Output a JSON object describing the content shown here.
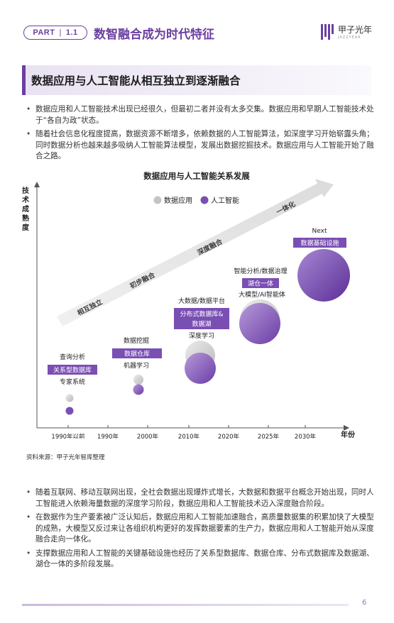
{
  "header": {
    "part_label": "PART",
    "part_number": "1.1",
    "title": "数智融合成为时代特征",
    "logo_text": "甲子光年",
    "logo_sub": "JAZZYEAR"
  },
  "section": {
    "title": "数据应用与人工智能从相互独立到逐渐融合"
  },
  "bullets_top": [
    "数据应用和人工智能技术出现已经很久，但最初二者并没有太多交集。数据应用和早期人工智能技术处于“各自为政”状态。",
    "随着社会信息化程度提高，数据资源不断增多，依赖数据的人工智能算法，如深度学习开始崭露头角；同时数据分析也越来越多吸纳人工智能算法模型，发展出数据挖掘技术。数据应用与人工智能开始了融合之路。"
  ],
  "chart": {
    "title": "数据应用与人工智能关系发展",
    "y_axis_label": "技术成熟度",
    "x_axis_label": "年份",
    "legend": [
      {
        "label": "数据应用",
        "color": "#c4c4c4"
      },
      {
        "label": "人工智能",
        "color": "#7a4fb3"
      }
    ],
    "stages": [
      "相互独立",
      "初步融合",
      "深度融合",
      "一体化"
    ],
    "x_ticks": [
      "1990年以前",
      "1990年",
      "2000年",
      "2010年",
      "2020年",
      "2025年",
      "2030年"
    ],
    "groups": [
      {
        "top": "查询分析",
        "tag": "关系型数据库",
        "bottom": "专家系统"
      },
      {
        "top": "数据挖掘",
        "tag": "数据仓库",
        "bottom": "机器学习"
      },
      {
        "top": "大数据/数据平台",
        "tag_lines": [
          "分布式数据库&",
          "数据湖"
        ],
        "bottom": "深度学习"
      },
      {
        "top": "智能分析/数据治理",
        "tag": "湖仓一体",
        "bottom": "大模型/AI智能体"
      },
      {
        "top": "Next",
        "tag": "数据基础设施"
      }
    ]
  },
  "source": "资料来源：甲子光年智库整理",
  "bullets_bottom": [
    "随着互联网、移动互联网出现，全社会数据出现爆炸式增长，大数据和数据平台概念开始出现，同时人工智能进入依赖海量数据的深度学习阶段，数据应用和人工智能技术迈入深度融合阶段。",
    "在数据作为生产要素被广泛认知后，数据应用和人工智能加速融合，高质量数据集的积累加快了大模型的成熟，大模型又反过来让各组织机构更好的发挥数据要素的生产力，数据应用和人工智能开始从深度融合走向一体化。",
    "支撑数据应用和人工智能的关键基础设施也经历了关系型数据库、数据仓库、分布式数据库及数据湖、湖仓一体的多阶段发展。"
  ],
  "page_number": "6"
}
